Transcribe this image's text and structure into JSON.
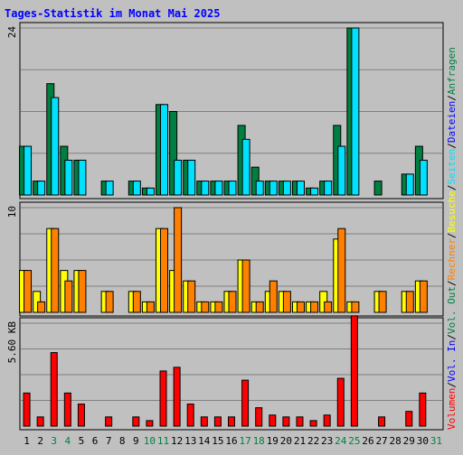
{
  "chart_data": {
    "type": "bar",
    "title": "Tages-Statistik im Monat Mai 2025",
    "categories": [
      "1",
      "2",
      "3",
      "4",
      "5",
      "6",
      "7",
      "8",
      "9",
      "10",
      "11",
      "12",
      "13",
      "14",
      "15",
      "16",
      "17",
      "18",
      "19",
      "20",
      "21",
      "22",
      "23",
      "24",
      "25",
      "26",
      "27",
      "28",
      "29",
      "30",
      "31"
    ],
    "weekend_days": [
      "3",
      "4",
      "10",
      "11",
      "17",
      "18",
      "24",
      "25",
      "31"
    ],
    "panels": [
      {
        "id": "hits",
        "ylabel": "24",
        "ymax": 24,
        "series": [
          {
            "name": "Anfragen",
            "color": "#008040",
            "values": [
              7,
              2,
              16,
              7,
              5,
              0,
              2,
              0,
              2,
              1,
              13,
              12,
              5,
              2,
              2,
              2,
              10,
              4,
              2,
              2,
              2,
              1,
              2,
              10,
              24,
              0,
              2,
              0,
              3,
              7,
              0
            ]
          },
          {
            "name": "Dateien",
            "color": "#00e0ff",
            "values": [
              7,
              2,
              14,
              5,
              5,
              0,
              2,
              0,
              2,
              1,
              13,
              5,
              5,
              2,
              2,
              2,
              8,
              2,
              2,
              2,
              2,
              1,
              2,
              7,
              24,
              0,
              0,
              0,
              3,
              5,
              0
            ]
          }
        ]
      },
      {
        "id": "visits",
        "ylabel": "10",
        "ymax": 10,
        "series": [
          {
            "name": "Besuche",
            "color": "#ffff00",
            "values": [
              4,
              2,
              8,
              4,
              4,
              0,
              2,
              0,
              2,
              1,
              8,
              4,
              3,
              1,
              1,
              2,
              5,
              1,
              2,
              2,
              1,
              1,
              2,
              7,
              1,
              0,
              2,
              0,
              2,
              3,
              0
            ]
          },
          {
            "name": "Rechner",
            "color": "#ff8000",
            "values": [
              4,
              1,
              8,
              3,
              4,
              0,
              2,
              0,
              2,
              1,
              8,
              10,
              3,
              1,
              1,
              2,
              5,
              1,
              3,
              2,
              1,
              1,
              1,
              8,
              1,
              0,
              2,
              0,
              2,
              3,
              0
            ]
          }
        ]
      },
      {
        "id": "volume",
        "ylabel": "5.60 KB",
        "ymax": 5.6,
        "series": [
          {
            "name": "Volumen",
            "color": "#ff0000",
            "values": [
              1.8,
              0.5,
              4.0,
              1.8,
              1.2,
              0,
              0.5,
              0,
              0.5,
              0.3,
              3.0,
              3.2,
              1.2,
              0.5,
              0.5,
              0.5,
              2.5,
              1.0,
              0.6,
              0.5,
              0.5,
              0.3,
              0.6,
              2.6,
              6.0,
              0,
              0.5,
              0,
              0.8,
              1.8,
              0
            ]
          }
        ]
      }
    ],
    "legend_right": [
      {
        "text": "Volumen",
        "color": "#ff0000"
      },
      {
        "text": "/",
        "color": "#000000"
      },
      {
        "text": "Vol. In",
        "color": "#0000ff"
      },
      {
        "text": "/",
        "color": "#000000"
      },
      {
        "text": "Vol. Out",
        "color": "#008040"
      },
      {
        "text": "/",
        "color": "#000000"
      },
      {
        "text": "Rechner",
        "color": "#ff8000"
      },
      {
        "text": "/",
        "color": "#000000"
      },
      {
        "text": "Besuche",
        "color": "#ffff00"
      },
      {
        "text": "/",
        "color": "#000000"
      },
      {
        "text": "Seiten",
        "color": "#00e0ff"
      },
      {
        "text": "/",
        "color": "#000000"
      },
      {
        "text": "Dateien",
        "color": "#0000ff"
      },
      {
        "text": "/",
        "color": "#000000"
      },
      {
        "text": "Anfragen",
        "color": "#008040"
      }
    ],
    "colors": {
      "background": "#c0c0c0",
      "title": "#0000ff",
      "weekend_label": "#008040",
      "weekday_label": "#000000"
    }
  }
}
